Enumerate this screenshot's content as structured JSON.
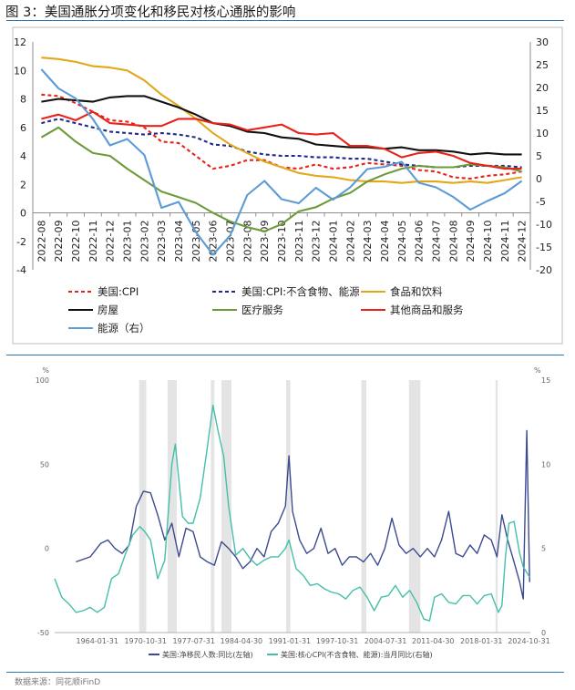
{
  "figure": {
    "title": "图 3：美国通胀分项变化和移民对核心通胀的影响",
    "source": "数据来源：同花顺iFinD"
  },
  "chart_data": [
    {
      "type": "line",
      "x": [
        "2022-08",
        "2022-09",
        "2022-10",
        "2022-11",
        "2022-12",
        "2023-01",
        "2023-02",
        "2023-03",
        "2023-04",
        "2023-05",
        "2023-06",
        "2023-07",
        "2023-08",
        "2023-09",
        "2023-10",
        "2023-11",
        "2023-12",
        "2024-01",
        "2024-02",
        "2024-03",
        "2024-04",
        "2024-05",
        "2024-06",
        "2024-07",
        "2024-08",
        "2024-09",
        "2024-10",
        "2024-11",
        "2024-12"
      ],
      "ylim_left": [
        -4,
        12
      ],
      "yticks_left": [
        -4,
        -2,
        0,
        2,
        4,
        6,
        8,
        10,
        12
      ],
      "ylim_right": [
        -20,
        30
      ],
      "yticks_right": [
        -20,
        -15,
        -10,
        -5,
        0,
        5,
        10,
        15,
        20,
        25,
        30
      ],
      "series": [
        {
          "name": "美国:CPI",
          "axis": "left",
          "color": "#e8231b",
          "dash": true,
          "values": [
            8.3,
            8.2,
            7.7,
            7.1,
            6.5,
            6.4,
            6.0,
            5.0,
            4.9,
            4.0,
            3.1,
            3.3,
            3.7,
            3.7,
            3.2,
            3.1,
            3.4,
            3.1,
            3.2,
            3.5,
            3.4,
            3.3,
            3.0,
            2.9,
            2.5,
            2.4,
            2.6,
            2.7,
            2.9
          ]
        },
        {
          "name": "美国:CPI:不含食物、能源",
          "axis": "left",
          "color": "#1f2a8c",
          "dash": true,
          "values": [
            6.3,
            6.6,
            6.3,
            6.0,
            5.7,
            5.6,
            5.5,
            5.6,
            5.5,
            5.3,
            4.8,
            4.7,
            4.3,
            4.1,
            4.0,
            4.0,
            3.9,
            3.9,
            3.8,
            3.8,
            3.6,
            3.4,
            3.3,
            3.2,
            3.2,
            3.3,
            3.3,
            3.3,
            3.2
          ]
        },
        {
          "name": "食品和饮料",
          "axis": "left",
          "color": "#e3a81a",
          "dash": false,
          "values": [
            10.9,
            10.8,
            10.6,
            10.3,
            10.2,
            10.0,
            9.3,
            8.3,
            7.5,
            6.6,
            5.6,
            4.8,
            4.2,
            3.6,
            3.2,
            2.8,
            2.6,
            2.5,
            2.3,
            2.2,
            2.2,
            2.1,
            2.2,
            2.2,
            2.1,
            2.2,
            2.1,
            2.3,
            2.5
          ]
        },
        {
          "name": "房屋",
          "axis": "left",
          "color": "#111111",
          "dash": false,
          "values": [
            7.8,
            8.0,
            7.9,
            7.8,
            8.1,
            8.2,
            8.2,
            7.8,
            7.4,
            6.9,
            6.3,
            6.1,
            5.7,
            5.6,
            5.3,
            5.2,
            4.8,
            4.7,
            4.6,
            4.6,
            4.5,
            4.6,
            4.4,
            4.4,
            4.3,
            4.1,
            4.2,
            4.1,
            4.1
          ]
        },
        {
          "name": "医疗服务",
          "axis": "left",
          "color": "#6e9b3a",
          "dash": false,
          "values": [
            5.3,
            6.0,
            5.0,
            4.2,
            4.0,
            3.1,
            2.3,
            1.5,
            1.1,
            0.7,
            0.0,
            -0.6,
            -1.0,
            -1.3,
            -0.8,
            0.1,
            0.4,
            1.0,
            1.4,
            2.2,
            2.7,
            3.1,
            3.3,
            3.2,
            3.2,
            3.4,
            3.3,
            3.2,
            2.9
          ]
        },
        {
          "name": "其他商品和服务",
          "axis": "left",
          "color": "#e8231b",
          "dash": false,
          "values": [
            6.6,
            6.9,
            6.5,
            7.1,
            6.3,
            6.2,
            6.1,
            6.1,
            6.6,
            6.6,
            6.3,
            6.2,
            5.8,
            6.0,
            6.2,
            5.6,
            5.5,
            5.6,
            4.7,
            4.7,
            4.5,
            3.9,
            4.2,
            4.3,
            4.0,
            3.5,
            3.3,
            3.1,
            3.1
          ]
        },
        {
          "name": "能源（右）",
          "axis": "right",
          "color": "#5d9bd5",
          "dash": false,
          "values": [
            24.0,
            19.8,
            17.6,
            13.1,
            7.3,
            8.7,
            5.2,
            -6.4,
            -5.1,
            -11.7,
            -16.7,
            -12.5,
            -3.6,
            -0.5,
            -4.5,
            -5.4,
            -2.0,
            -4.6,
            -1.9,
            2.1,
            2.6,
            3.7,
            -0.9,
            -1.9,
            -4.0,
            -6.8,
            -4.9,
            -3.2,
            -0.5
          ]
        }
      ],
      "legend_labels": [
        "美国:CPI",
        "美国:CPI:不含食物、能源",
        "食品和饮料",
        "房屋",
        "医疗服务",
        "其他商品和服务",
        "能源（右）"
      ],
      "legend_position": "bottom"
    },
    {
      "type": "line",
      "ylim_left": [
        -50,
        100
      ],
      "yticks_left": [
        -50,
        0,
        50,
        100
      ],
      "ylabel_left": "%",
      "ylim_right": [
        0,
        15
      ],
      "yticks_right": [
        0,
        5,
        10,
        15
      ],
      "ylabel_right": "%",
      "xlim": [
        1958.0,
        2025.0
      ],
      "xtick_labels": [
        "1964-01-31",
        "1970-10-31",
        "1977-07-31",
        "1984-04-30",
        "1991-01-31",
        "1997-10-31",
        "2004-07-31",
        "2011-04-30",
        "2018-01-31",
        "2024-10-31"
      ],
      "xtick_years": [
        1964.0,
        1970.8,
        1977.6,
        1984.3,
        1991.1,
        1997.8,
        2004.6,
        2011.3,
        2018.1,
        2024.8
      ],
      "recessions": [
        [
          1969.9,
          1970.9
        ],
        [
          1973.9,
          1975.2
        ],
        [
          1980.0,
          1980.5
        ],
        [
          1981.5,
          1982.9
        ],
        [
          1990.6,
          1991.2
        ],
        [
          2001.2,
          2001.9
        ],
        [
          2007.9,
          2009.5
        ],
        [
          2020.1,
          2020.4
        ]
      ],
      "series": [
        {
          "name": "美国:净移民人数:同比(左轴)",
          "axis": "left",
          "color": "#3c4a8f",
          "x": [
            1961.0,
            1963.0,
            1964.5,
            1965.5,
            1966.5,
            1967.5,
            1968.5,
            1969.5,
            1970.5,
            1971.5,
            1972.5,
            1973.5,
            1974.5,
            1975.5,
            1976.5,
            1977.5,
            1978.5,
            1979.5,
            1980.5,
            1981.5,
            1982.5,
            1983.5,
            1984.5,
            1985.5,
            1986.5,
            1987.5,
            1988.5,
            1989.5,
            1990.5,
            1991.0,
            1991.5,
            1992.5,
            1993.5,
            1994.5,
            1995.5,
            1996.5,
            1997.5,
            1998.5,
            1999.5,
            2000.5,
            2001.5,
            2002.5,
            2003.5,
            2004.5,
            2005.5,
            2006.5,
            2007.5,
            2008.5,
            2009.5,
            2010.5,
            2011.5,
            2012.5,
            2013.5,
            2014.5,
            2015.5,
            2016.5,
            2017.5,
            2018.5,
            2019.5,
            2020.3,
            2021.0,
            2021.8,
            2022.5,
            2023.5,
            2024.0,
            2024.5,
            2024.9
          ],
          "values": [
            -8,
            -5,
            3,
            5,
            0,
            -3,
            2,
            25,
            34,
            33,
            20,
            5,
            15,
            -5,
            12,
            10,
            -5,
            -8,
            -10,
            4,
            0,
            -5,
            -12,
            -8,
            0,
            -5,
            10,
            15,
            25,
            55,
            22,
            5,
            -3,
            0,
            12,
            -3,
            0,
            -10,
            -5,
            -5,
            -8,
            -3,
            -10,
            0,
            18,
            2,
            -3,
            0,
            -5,
            0,
            -5,
            5,
            22,
            -3,
            -5,
            2,
            -3,
            8,
            5,
            -5,
            20,
            5,
            -5,
            -20,
            -30,
            70,
            -20
          ]
        },
        {
          "name": "美国:核心CPI(不含食物、能源):当月同比(右轴)",
          "axis": "right",
          "color": "#44bfa9",
          "x": [
            1958.0,
            1959.0,
            1960.0,
            1961.0,
            1962.0,
            1963.0,
            1964.0,
            1965.0,
            1966.0,
            1967.0,
            1968.0,
            1969.0,
            1970.0,
            1970.7,
            1971.5,
            1972.5,
            1973.5,
            1974.5,
            1975.0,
            1976.0,
            1976.8,
            1977.5,
            1978.5,
            1979.5,
            1980.3,
            1981.0,
            1981.8,
            1982.5,
            1983.5,
            1984.5,
            1985.5,
            1986.5,
            1987.5,
            1988.5,
            1989.5,
            1990.5,
            1991.0,
            1992.0,
            1993.0,
            1994.0,
            1995.0,
            1996.0,
            1997.0,
            1998.0,
            1999.0,
            2000.0,
            2001.0,
            2002.0,
            2003.0,
            2004.0,
            2005.0,
            2006.0,
            2007.0,
            2008.0,
            2009.0,
            2010.0,
            2010.8,
            2011.5,
            2012.5,
            2013.5,
            2014.5,
            2015.5,
            2016.5,
            2017.5,
            2018.5,
            2019.5,
            2020.5,
            2021.0,
            2021.5,
            2022.0,
            2022.7,
            2023.5,
            2024.0,
            2024.9
          ],
          "values": [
            3.2,
            2.1,
            1.7,
            1.2,
            1.3,
            1.5,
            1.2,
            1.5,
            3.2,
            3.5,
            4.7,
            5.8,
            6.3,
            6.0,
            5.5,
            3.2,
            4.3,
            10.0,
            11.2,
            6.9,
            6.5,
            6.5,
            8.0,
            11.0,
            13.5,
            12.0,
            10.5,
            7.5,
            4.6,
            5.0,
            4.4,
            4.0,
            4.3,
            4.5,
            4.5,
            5.0,
            5.5,
            3.8,
            3.4,
            2.8,
            2.9,
            2.6,
            2.4,
            2.3,
            2.0,
            2.5,
            2.7,
            2.1,
            1.3,
            2.1,
            2.2,
            2.8,
            2.1,
            2.5,
            1.8,
            0.8,
            0.7,
            2.1,
            2.3,
            1.8,
            1.7,
            2.2,
            2.2,
            1.7,
            2.2,
            2.3,
            1.2,
            1.6,
            4.5,
            6.5,
            6.6,
            4.7,
            3.9,
            3.3
          ]
        }
      ],
      "legend_labels": [
        "美国:净移民人数:同比(左轴)",
        "美国:核心CPI(不含食物、能源):当月同比(右轴)"
      ],
      "legend_position": "bottom"
    }
  ]
}
